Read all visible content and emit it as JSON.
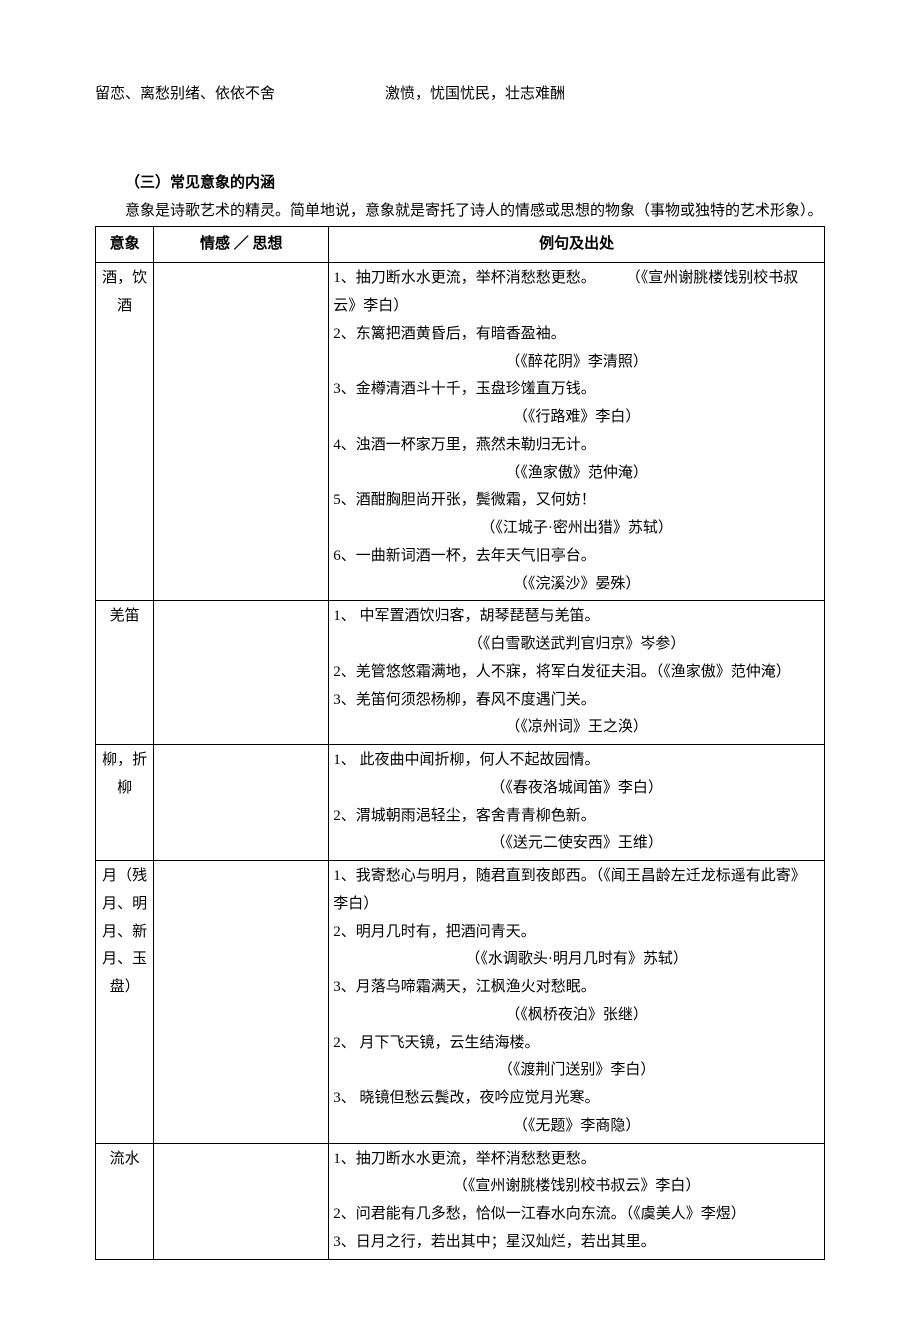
{
  "top": {
    "left": "留恋、离愁别绪、依依不舍",
    "right": "激愤，忧国忧民，壮志难酬"
  },
  "section": {
    "heading": "（三）常见意象的内涵",
    "intro": "意象是诗歌艺术的精灵。简单地说，意象就是寄托了诗人的情感或思想的物象（事物或独特的艺术形象）。"
  },
  "table": {
    "headers": [
      "意象",
      "情感 ／ 思想",
      "例句及出处"
    ],
    "rows": [
      {
        "symbol": "酒，饮酒",
        "emotion": "",
        "examples": [
          {
            "text": "1、抽刀断水水更流，举杯消愁愁更愁。　　　（《宣州谢朓楼饯别校书叔云》李白）",
            "src": "",
            "align": "left"
          },
          {
            "text": "2、东篱把酒黄昏后，有暗香盈袖。",
            "src": "（《醉花阴》李清照）",
            "align": "center"
          },
          {
            "text": "3、金樽清酒斗十千，玉盘珍馐直万钱。",
            "src": "（《行路难》李白）",
            "align": "center"
          },
          {
            "text": "4、浊酒一杯家万里，燕然未勒归无计。",
            "src": "（《渔家傲》范仲淹）",
            "align": "center"
          },
          {
            "text": "5、酒酣胸胆尚开张，鬓微霜，又何妨！",
            "src": "（《江城子·密州出猎》苏轼）",
            "align": "center"
          },
          {
            "text": "6、一曲新词酒一杯，去年天气旧亭台。",
            "src": "（《浣溪沙》晏殊）",
            "align": "center"
          }
        ]
      },
      {
        "symbol": "羌笛",
        "emotion": "",
        "examples": [
          {
            "text": "1、 中军置酒饮归客，胡琴琵琶与羌笛。",
            "src": "（《白雪歌送武判官归京》岑参）",
            "align": "center"
          },
          {
            "text": "2、羌管悠悠霜满地，人不寐，将军白发征夫泪。（《渔家傲》范仲淹）",
            "src": "",
            "align": "left"
          },
          {
            "text": "3、羌笛何须怨杨柳，春风不度遇门关。",
            "src": "（《凉州词》王之涣）",
            "align": "center"
          }
        ]
      },
      {
        "symbol": "柳，折柳",
        "emotion": "",
        "examples": [
          {
            "text": "1、 此夜曲中闻折柳，何人不起故园情。",
            "src": "（《春夜洛城闻笛》李白）",
            "align": "center"
          },
          {
            "text": "2、渭城朝雨浥轻尘，客舍青青柳色新。",
            "src": "（《送元二使安西》王维）",
            "align": "center"
          }
        ]
      },
      {
        "symbol": "月（残月、明月、新月、玉盘）",
        "emotion": "",
        "examples": [
          {
            "text": "1、我寄愁心与明月，随君直到夜郎西。（《闻王昌龄左迁龙标遥有此寄》李白）",
            "src": "",
            "align": "left"
          },
          {
            "text": "2、明月几时有，把酒问青天。",
            "src": "（《水调歌头·明月几时有》苏轼）",
            "align": "center"
          },
          {
            "text": "3、月落乌啼霜满天，江枫渔火对愁眠。",
            "src": "（《枫桥夜泊》张继）",
            "align": "center"
          },
          {
            "text": "2、 月下飞天镜，云生结海楼。",
            "src": "（《渡荆门送别》李白）",
            "align": "center"
          },
          {
            "text": "3、 晓镜但愁云鬓改，夜吟应觉月光寒。",
            "src": "（《无题》李商隐）",
            "align": "center"
          }
        ]
      },
      {
        "symbol": "流水",
        "emotion": "",
        "examples": [
          {
            "text": "1、抽刀断水水更流，举杯消愁愁更愁。",
            "src": "（《宣州谢朓楼饯别校书叔云》李白）",
            "align": "center"
          },
          {
            "text": "2、问君能有几多愁，恰似一江春水向东流。（《虞美人》李煜）",
            "src": "",
            "align": "left"
          },
          {
            "text": "3、日月之行，若出其中；星汉灿烂，若出其里。",
            "src": "",
            "align": "left"
          }
        ]
      }
    ]
  }
}
